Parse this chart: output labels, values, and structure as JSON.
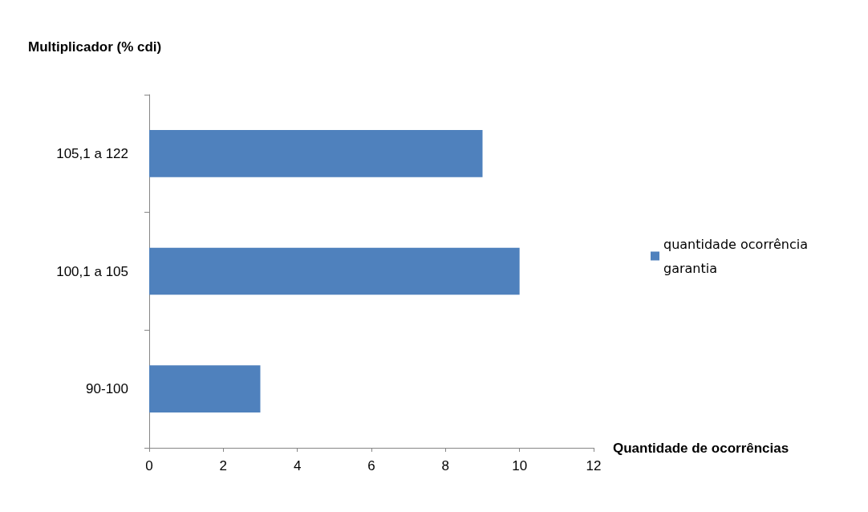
{
  "chart_data": {
    "type": "bar",
    "orientation": "horizontal",
    "ylabel": "Multiplicador (% cdi)",
    "xlabel": "Quantidade de ocorrências",
    "categories": [
      "105,1 a 122",
      "100,1 a 105",
      "90-100"
    ],
    "series": [
      {
        "name": "quantidade ocorrência garantia",
        "color": "#4f81bd",
        "values": [
          9,
          10,
          3
        ]
      }
    ],
    "xlim": [
      0,
      12
    ],
    "xticks": [
      0,
      2,
      4,
      6,
      8,
      10,
      12
    ],
    "grid": false,
    "legend": "right"
  }
}
